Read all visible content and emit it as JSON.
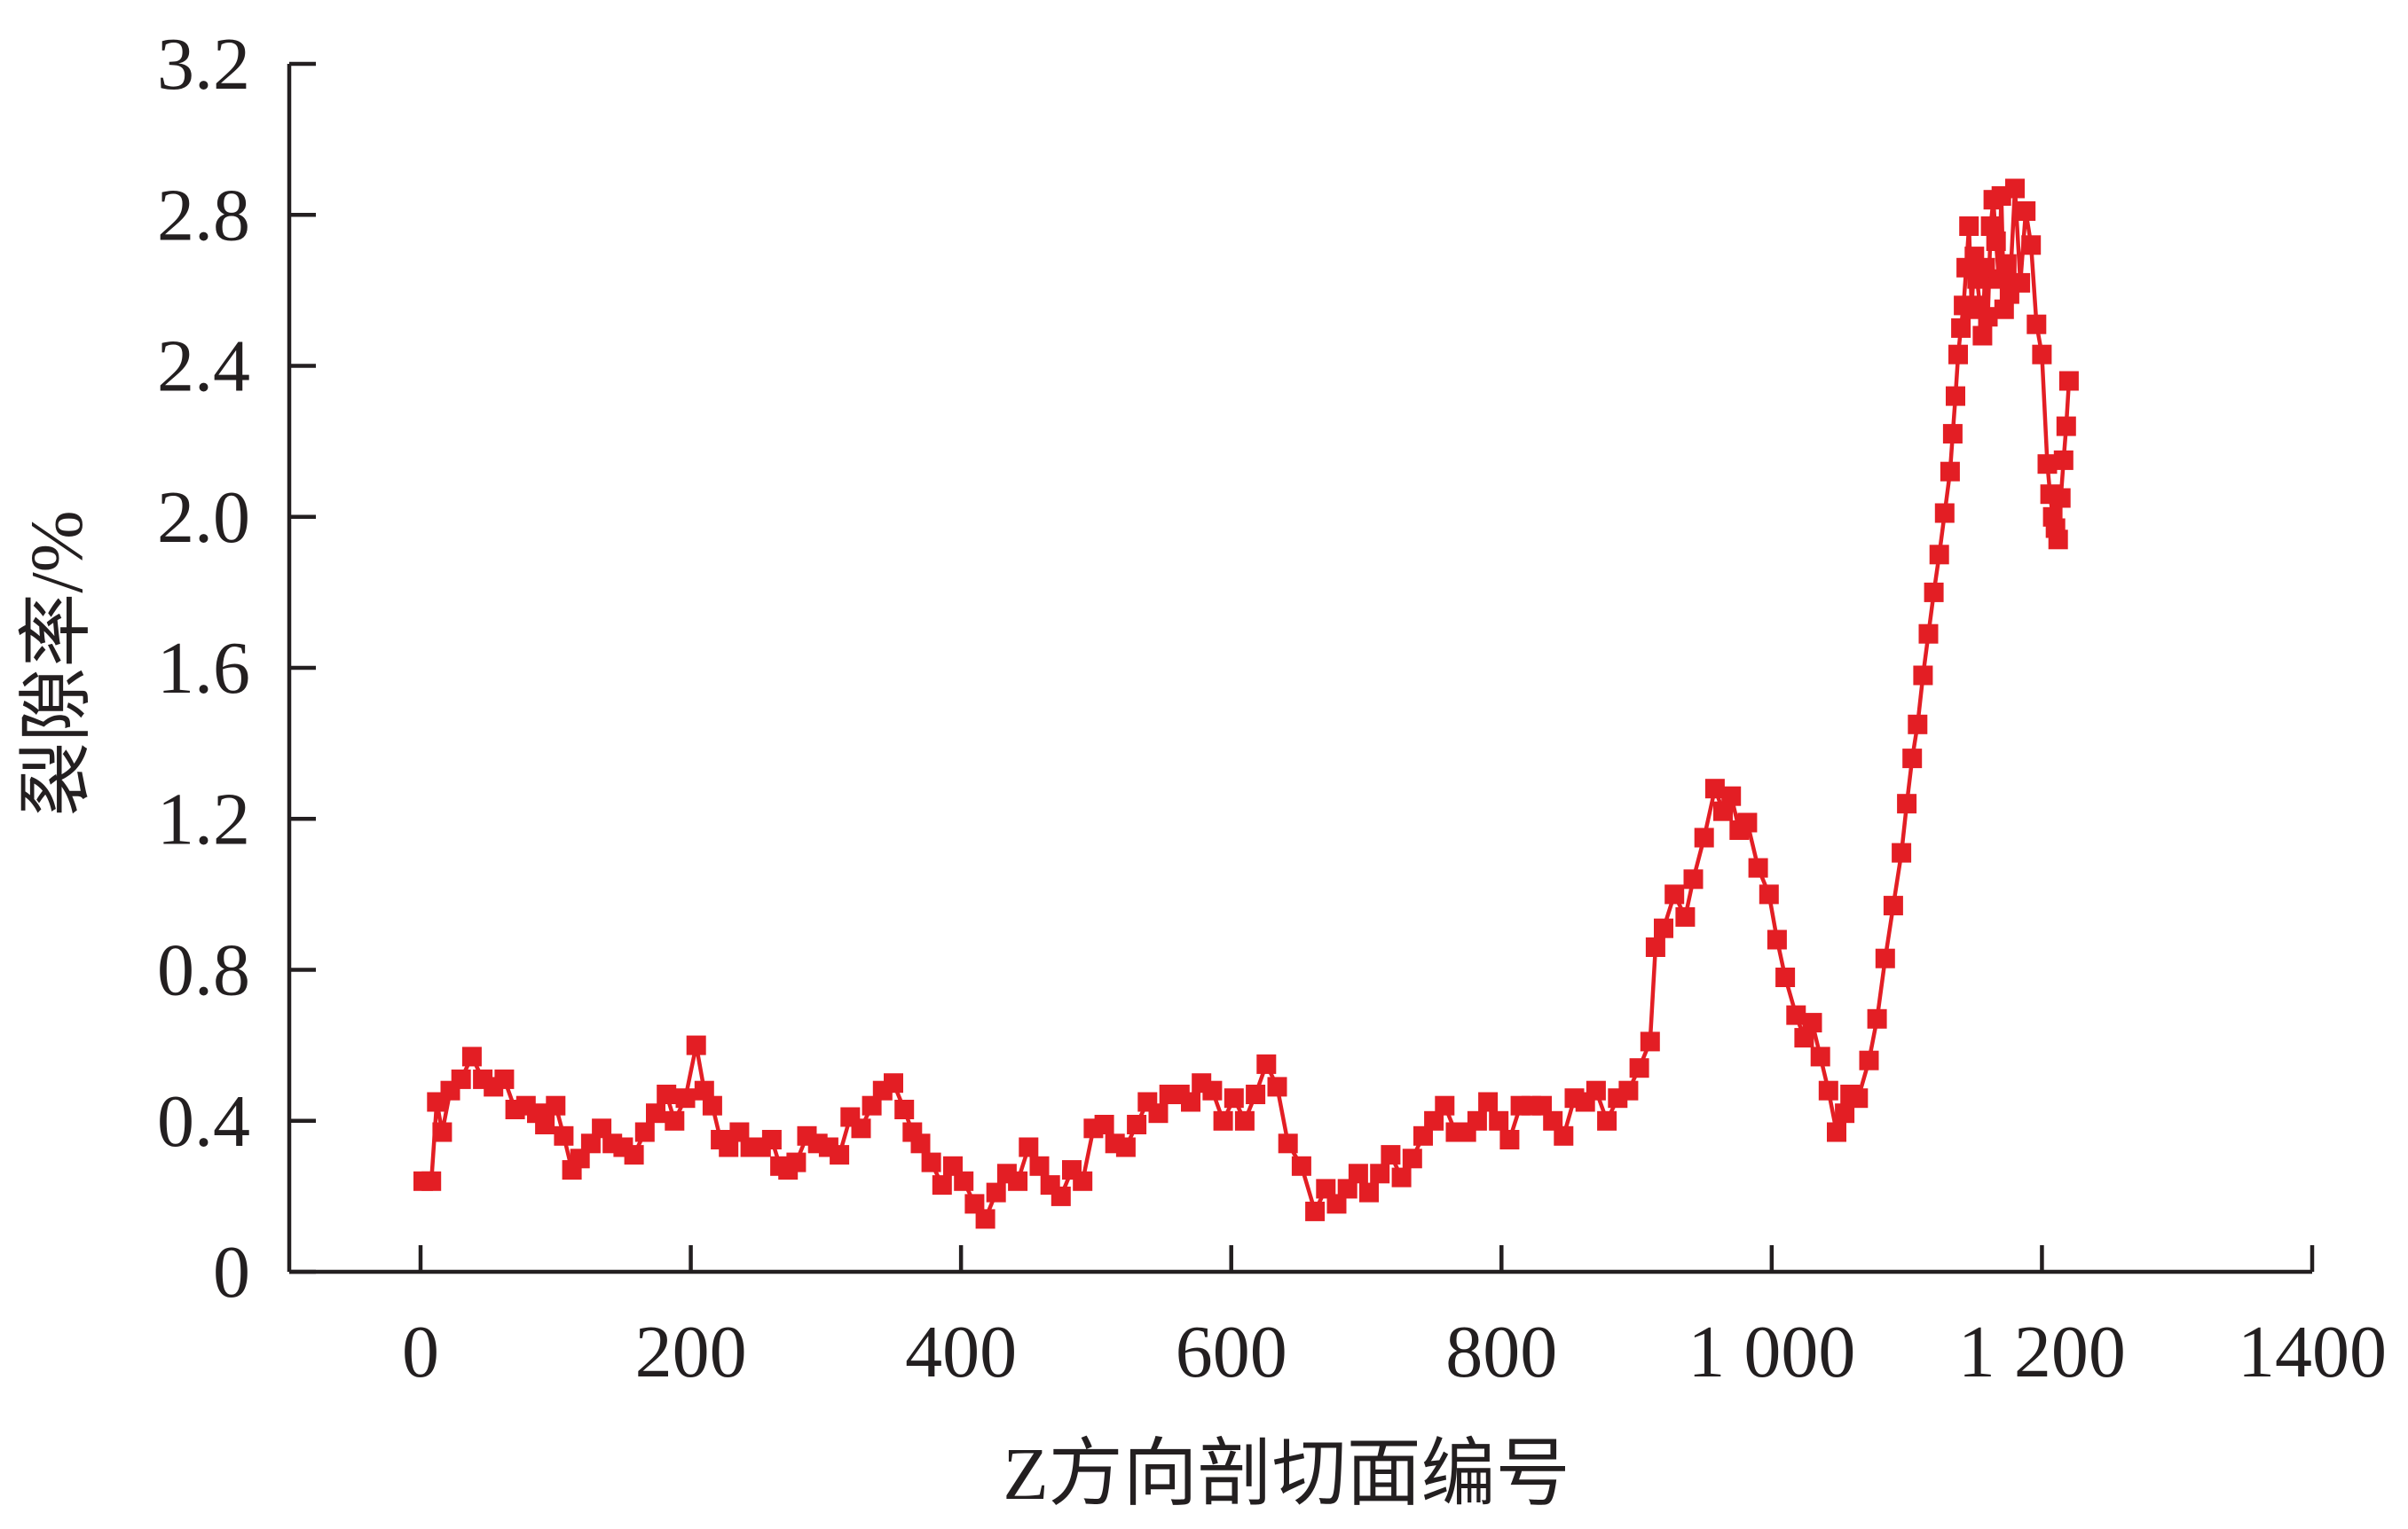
{
  "chart_data": {
    "type": "line",
    "title": "",
    "xlabel": "Z方向剖切面编号",
    "ylabel": "裂隙率/%",
    "xlim": [
      -50,
      1400
    ],
    "ylim": [
      0,
      3.2
    ],
    "x_ticks": [
      0,
      200,
      400,
      600,
      800,
      1000,
      1200,
      1400
    ],
    "x_tick_labels": [
      "0",
      "200",
      "400",
      "600",
      "800",
      "1 000",
      "1 200",
      "1400"
    ],
    "y_ticks": [
      0,
      0.4,
      0.8,
      1.2,
      1.6,
      2.0,
      2.4,
      2.8,
      3.2
    ],
    "y_tick_labels": [
      "0",
      "0.4",
      "0.8",
      "1.2",
      "1.6",
      "2.0",
      "2.4",
      "2.8",
      "3.2"
    ],
    "grid": false,
    "series_color": "#e31e24",
    "marker": "square",
    "series": [
      {
        "x": [
          2,
          8,
          12,
          16,
          22,
          30,
          38,
          46,
          54,
          62,
          70,
          78,
          86,
          92,
          100,
          106,
          112,
          118,
          126,
          134,
          142,
          150,
          158,
          166,
          174,
          182,
          188,
          196,
          204,
          210,
          216,
          222,
          228,
          236,
          244,
          252,
          260,
          266,
          272,
          278,
          286,
          294,
          302,
          310,
          318,
          326,
          334,
          342,
          350,
          358,
          364,
          370,
          378,
          386,
          394,
          402,
          410,
          418,
          426,
          434,
          442,
          450,
          458,
          466,
          474,
          482,
          490,
          498,
          506,
          514,
          522,
          530,
          538,
          546,
          554,
          562,
          570,
          578,
          586,
          594,
          602,
          610,
          618,
          626,
          634,
          642,
          652,
          662,
          670,
          678,
          686,
          694,
          702,
          710,
          718,
          726,
          734,
          742,
          750,
          758,
          766,
          774,
          782,
          790,
          798,
          806,
          814,
          822,
          830,
          838,
          846,
          854,
          862,
          870,
          878,
          886,
          894,
          902,
          910,
          914,
          920,
          928,
          936,
          942,
          950,
          958,
          964,
          970,
          976,
          982,
          990,
          998,
          1004,
          1010,
          1018,
          1024,
          1030,
          1036,
          1042,
          1048,
          1054,
          1058,
          1064,
          1072,
          1078,
          1084,
          1090,
          1096,
          1100,
          1104,
          1108,
          1112,
          1116,
          1120,
          1124,
          1128,
          1132,
          1134,
          1136,
          1138,
          1140,
          1142,
          1144,
          1146,
          1148,
          1150,
          1152,
          1154,
          1156,
          1158,
          1160,
          1162,
          1164,
          1166,
          1168,
          1170,
          1172,
          1174,
          1176,
          1180,
          1184,
          1188,
          1192,
          1196,
          1200,
          1204,
          1206,
          1208,
          1210,
          1212,
          1214,
          1216,
          1218,
          1220
        ],
        "y": [
          0.24,
          0.24,
          0.45,
          0.37,
          0.48,
          0.51,
          0.57,
          0.51,
          0.49,
          0.51,
          0.43,
          0.44,
          0.42,
          0.39,
          0.44,
          0.36,
          0.27,
          0.3,
          0.34,
          0.38,
          0.34,
          0.33,
          0.31,
          0.37,
          0.42,
          0.47,
          0.4,
          0.46,
          0.6,
          0.48,
          0.44,
          0.35,
          0.33,
          0.37,
          0.33,
          0.33,
          0.35,
          0.28,
          0.27,
          0.29,
          0.36,
          0.34,
          0.33,
          0.31,
          0.41,
          0.38,
          0.44,
          0.48,
          0.5,
          0.43,
          0.37,
          0.34,
          0.29,
          0.23,
          0.28,
          0.24,
          0.18,
          0.14,
          0.21,
          0.26,
          0.24,
          0.33,
          0.28,
          0.23,
          0.2,
          0.27,
          0.24,
          0.38,
          0.39,
          0.34,
          0.33,
          0.39,
          0.45,
          0.42,
          0.47,
          0.47,
          0.45,
          0.5,
          0.48,
          0.4,
          0.46,
          0.4,
          0.47,
          0.55,
          0.49,
          0.34,
          0.28,
          0.16,
          0.22,
          0.18,
          0.22,
          0.26,
          0.21,
          0.26,
          0.31,
          0.25,
          0.3,
          0.36,
          0.4,
          0.44,
          0.37,
          0.37,
          0.4,
          0.45,
          0.4,
          0.35,
          0.44,
          0.44,
          0.44,
          0.4,
          0.36,
          0.46,
          0.45,
          0.48,
          0.4,
          0.46,
          0.48,
          0.54,
          0.61,
          0.86,
          0.91,
          1.0,
          0.94,
          1.04,
          1.15,
          1.28,
          1.22,
          1.26,
          1.17,
          1.19,
          1.07,
          1.0,
          0.88,
          0.78,
          0.68,
          0.62,
          0.66,
          0.57,
          0.48,
          0.37,
          0.42,
          0.47,
          0.46,
          0.56,
          0.67,
          0.83,
          0.97,
          1.11,
          1.24,
          1.36,
          1.45,
          1.58,
          1.69,
          1.8,
          1.9,
          2.01,
          2.12,
          2.22,
          2.32,
          2.43,
          2.5,
          2.56,
          2.66,
          2.77,
          2.55,
          2.69,
          2.63,
          2.56,
          2.48,
          2.66,
          2.53,
          2.77,
          2.84,
          2.73,
          2.63,
          2.85,
          2.55,
          2.67,
          2.59,
          2.87,
          2.62,
          2.81,
          2.72,
          2.51,
          2.43,
          2.14,
          2.06,
          2.0,
          1.97,
          1.94,
          2.05,
          2.15,
          2.24,
          2.36
        ]
      }
    ]
  }
}
